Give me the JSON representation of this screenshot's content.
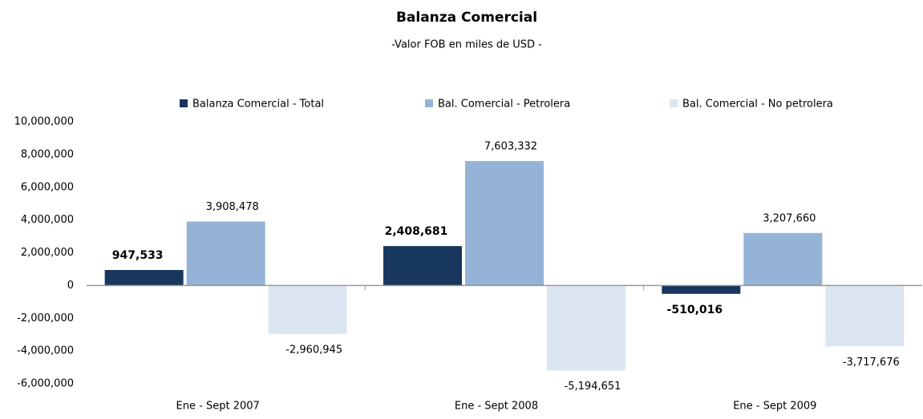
{
  "chart_data": {
    "type": "bar",
    "title": "Balanza Comercial",
    "subtitle": "-Valor FOB en miles de USD -",
    "categories": [
      "Ene - Sept 2007",
      "Ene - Sept 2008",
      "Ene - Sept 2009"
    ],
    "series": [
      {
        "name": "Balanza Comercial - Total",
        "color": "#17375e",
        "values": [
          947533,
          2408681,
          -510016
        ],
        "value_labels": [
          "947,533",
          "2,408,681",
          "-510,016"
        ]
      },
      {
        "name": "Bal. Comercial - Petrolera",
        "color": "#95b3d7",
        "values": [
          3908478,
          7603332,
          3207660
        ],
        "value_labels": [
          "3,908,478",
          "7,603,332",
          "3,207,660"
        ]
      },
      {
        "name": "Bal. Comercial - No petrolera",
        "color": "#dce6f2",
        "values": [
          -2960945,
          -5194651,
          -3717676
        ],
        "value_labels": [
          "-2,960,945",
          "-5,194,651",
          "-3,717,676"
        ]
      }
    ],
    "ylim": [
      -6000000,
      10000000
    ],
    "yticks": [
      {
        "value": -6000000,
        "label": "-6,000,000"
      },
      {
        "value": -4000000,
        "label": "-4,000,000"
      },
      {
        "value": -2000000,
        "label": "-2,000,000"
      },
      0,
      {
        "value": 2000000,
        "label": "2,000,000"
      },
      {
        "value": 4000000,
        "label": "4,000,000"
      },
      {
        "value": 6000000,
        "label": "6,000,000"
      },
      {
        "value": 8000000,
        "label": "8,000,000"
      },
      {
        "value": 10000000,
        "label": "10,000,000"
      }
    ],
    "legend": "top"
  }
}
